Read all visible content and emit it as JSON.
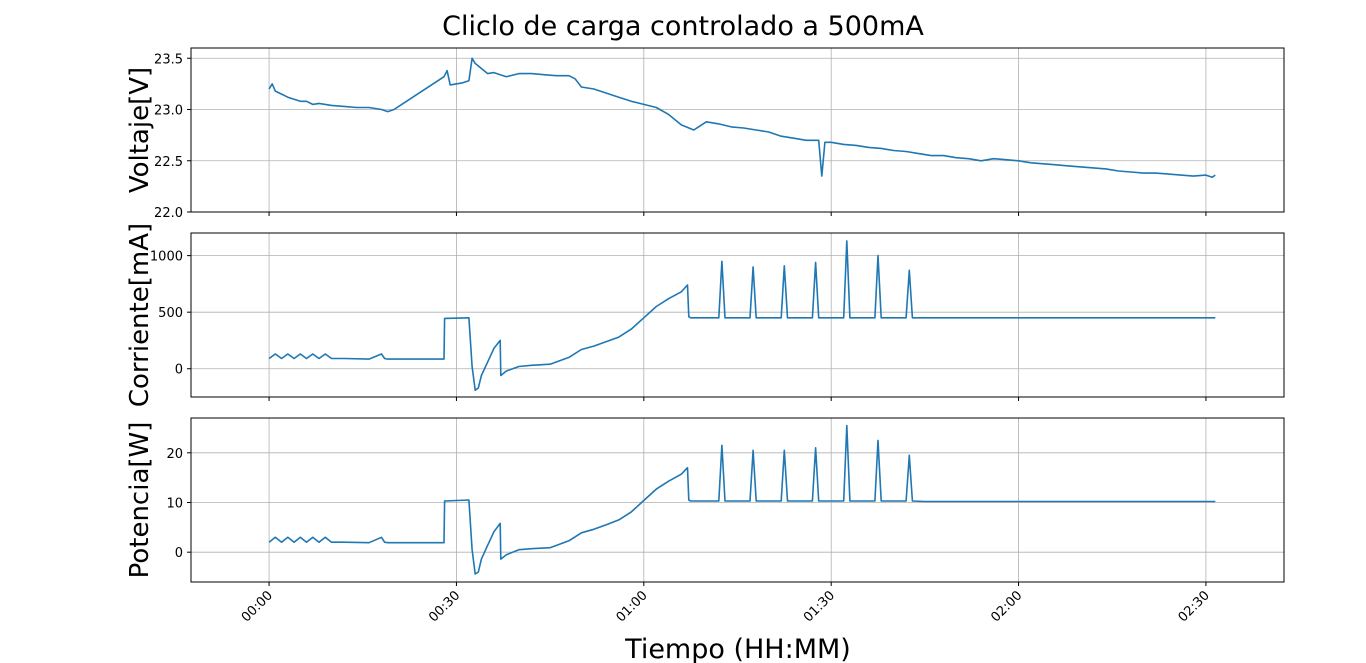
{
  "chart_data": {
    "title": "Cliclo de carga controlado a 500mA",
    "type": "line",
    "xlabel": "Tiempo (HH:MM)",
    "x_unit": "minutes",
    "xlim": [
      -12.5,
      162.5
    ],
    "x_ticks": [
      {
        "value": 0,
        "label": "00:00"
      },
      {
        "value": 30,
        "label": "00:30"
      },
      {
        "value": 60,
        "label": "01:00"
      },
      {
        "value": 90,
        "label": "01:30"
      },
      {
        "value": 120,
        "label": "02:00"
      },
      {
        "value": 150,
        "label": "02:30"
      }
    ],
    "grid": true,
    "color": "#1f77b4",
    "panels": [
      {
        "ylabel": "Voltaje[V]",
        "ylim": [
          22.0,
          23.6
        ],
        "y_ticks": [
          {
            "value": 22.0,
            "label": "22.0"
          },
          {
            "value": 22.5,
            "label": "22.5"
          },
          {
            "value": 23.0,
            "label": "23.0"
          },
          {
            "value": 23.5,
            "label": "23.5"
          }
        ],
        "x": [
          0,
          0.5,
          1,
          2,
          3,
          4,
          5,
          6,
          7,
          8,
          10,
          12,
          14,
          16,
          18,
          19,
          20,
          22,
          24,
          26,
          28,
          28.5,
          29,
          31,
          32,
          32.5,
          33,
          34,
          35,
          36,
          37,
          38,
          40,
          42,
          44,
          46,
          48,
          49,
          50,
          52,
          54,
          56,
          58,
          60,
          62,
          64,
          66,
          68,
          70,
          72,
          74,
          76,
          78,
          80,
          82,
          84,
          86,
          88,
          88.5,
          89,
          90,
          92,
          94,
          96,
          98,
          100,
          102,
          104,
          106,
          108,
          110,
          112,
          114,
          116,
          118,
          120,
          122,
          124,
          126,
          128,
          130,
          132,
          134,
          136,
          138,
          140,
          142,
          144,
          146,
          148,
          150,
          151,
          151.5
        ],
        "y": [
          23.2,
          23.25,
          23.18,
          23.15,
          23.12,
          23.1,
          23.08,
          23.08,
          23.05,
          23.06,
          23.04,
          23.03,
          23.02,
          23.02,
          23.0,
          22.98,
          23.0,
          23.08,
          23.16,
          23.24,
          23.32,
          23.38,
          23.24,
          23.26,
          23.28,
          23.5,
          23.45,
          23.4,
          23.35,
          23.36,
          23.34,
          23.32,
          23.35,
          23.35,
          23.34,
          23.33,
          23.33,
          23.3,
          23.22,
          23.2,
          23.16,
          23.12,
          23.08,
          23.05,
          23.02,
          22.95,
          22.85,
          22.8,
          22.88,
          22.86,
          22.83,
          22.82,
          22.8,
          22.78,
          22.74,
          22.72,
          22.7,
          22.7,
          22.35,
          22.68,
          22.68,
          22.66,
          22.65,
          22.63,
          22.62,
          22.6,
          22.59,
          22.57,
          22.55,
          22.55,
          22.53,
          22.52,
          22.5,
          22.52,
          22.51,
          22.5,
          22.48,
          22.47,
          22.46,
          22.45,
          22.44,
          22.43,
          22.42,
          22.4,
          22.39,
          22.38,
          22.38,
          22.37,
          22.36,
          22.35,
          22.36,
          22.34,
          22.36
        ]
      },
      {
        "ylabel": "Corriente[mA]",
        "ylim": [
          -250,
          1200
        ],
        "y_ticks": [
          {
            "value": 0,
            "label": "0"
          },
          {
            "value": 500,
            "label": "500"
          },
          {
            "value": 1000,
            "label": "1000"
          }
        ],
        "x": [
          0,
          1,
          2,
          3,
          4,
          5,
          6,
          7,
          8,
          9,
          10,
          12,
          16,
          18,
          18.5,
          19,
          28,
          28.1,
          32,
          32.5,
          33,
          33.5,
          34,
          35,
          36,
          37,
          37.1,
          38,
          40,
          42,
          45,
          48,
          50,
          52,
          54,
          56,
          58,
          60,
          62,
          64,
          66,
          67,
          67.2,
          67.5,
          70,
          72,
          72.5,
          73,
          75,
          77,
          77.5,
          78,
          80,
          82,
          82.5,
          83,
          85,
          87,
          87.5,
          88,
          90,
          92,
          92.5,
          93,
          95,
          97,
          97.5,
          98,
          100,
          102,
          102.5,
          103,
          105,
          110,
          120,
          130,
          140,
          150,
          151.5
        ],
        "y": [
          90,
          130,
          90,
          130,
          90,
          130,
          90,
          130,
          90,
          130,
          90,
          90,
          85,
          130,
          90,
          85,
          85,
          445,
          450,
          20,
          -190,
          -170,
          -60,
          60,
          180,
          250,
          -60,
          -20,
          20,
          30,
          40,
          100,
          170,
          200,
          240,
          280,
          350,
          450,
          550,
          620,
          680,
          740,
          460,
          450,
          450,
          450,
          950,
          450,
          450,
          450,
          900,
          450,
          450,
          450,
          910,
          450,
          450,
          450,
          940,
          450,
          450,
          450,
          1130,
          450,
          450,
          450,
          1000,
          450,
          450,
          450,
          870,
          450,
          450,
          450,
          450,
          450,
          450,
          450,
          450
        ]
      },
      {
        "ylabel": "Potencia[W]",
        "ylim": [
          -6,
          27
        ],
        "y_ticks": [
          {
            "value": 0,
            "label": "0"
          },
          {
            "value": 10,
            "label": "10"
          },
          {
            "value": 20,
            "label": "20"
          }
        ],
        "x": [
          0,
          1,
          2,
          3,
          4,
          5,
          6,
          7,
          8,
          9,
          10,
          12,
          16,
          18,
          18.5,
          19,
          28,
          28.1,
          32,
          32.5,
          33,
          33.5,
          34,
          35,
          36,
          37,
          37.1,
          38,
          40,
          42,
          45,
          48,
          50,
          52,
          54,
          56,
          58,
          60,
          62,
          64,
          66,
          67,
          67.2,
          67.5,
          70,
          72,
          72.5,
          73,
          75,
          77,
          77.5,
          78,
          80,
          82,
          82.5,
          83,
          85,
          87,
          87.5,
          88,
          90,
          92,
          92.5,
          93,
          95,
          97,
          97.5,
          98,
          100,
          102,
          102.5,
          103,
          105,
          110,
          120,
          130,
          140,
          150,
          151.5
        ],
        "y": [
          2.0,
          3.0,
          2.0,
          3.0,
          2.0,
          3.0,
          2.0,
          3.0,
          2.0,
          3.0,
          2.0,
          2.0,
          1.9,
          3.0,
          2.0,
          1.9,
          1.9,
          10.3,
          10.5,
          0.5,
          -4.4,
          -4.0,
          -1.4,
          1.4,
          4.1,
          5.8,
          -1.4,
          -0.5,
          0.5,
          0.7,
          0.9,
          2.3,
          3.9,
          4.6,
          5.5,
          6.5,
          8.1,
          10.4,
          12.7,
          14.3,
          15.7,
          17.0,
          10.5,
          10.3,
          10.3,
          10.3,
          21.5,
          10.3,
          10.3,
          10.3,
          20.5,
          10.3,
          10.3,
          10.3,
          20.5,
          10.3,
          10.3,
          10.3,
          21.0,
          10.3,
          10.3,
          10.3,
          25.5,
          10.3,
          10.3,
          10.3,
          22.5,
          10.3,
          10.3,
          10.3,
          19.5,
          10.3,
          10.2,
          10.2,
          10.2,
          10.2,
          10.2,
          10.2,
          10.2
        ]
      }
    ]
  }
}
